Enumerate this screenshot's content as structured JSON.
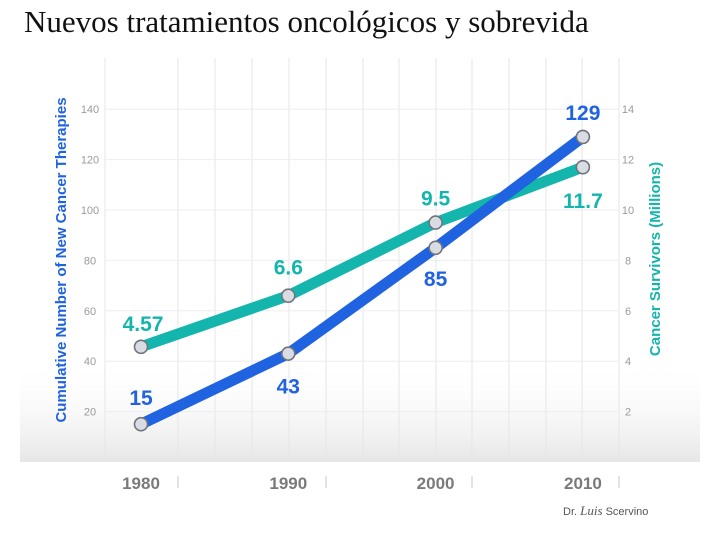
{
  "slide": {
    "title": "Nuevos tratamientos oncológicos  y sobrevida",
    "credit_prefix": "Dr.",
    "credit_name": "Luis",
    "credit_suffix": "Scervino"
  },
  "colors": {
    "therapies": "#1f63e0",
    "survivors": "#14b5ad",
    "left_axis_label": "#1f63e0",
    "right_axis_label": "#14b5ad"
  },
  "chart_data": {
    "type": "line",
    "title": "",
    "xlabel": "",
    "ylabel": "Cumulative Number of New Cancer Therapies",
    "y2label": "Cancer Survivors (Millions)",
    "x": [
      1980,
      1990,
      2000,
      2010
    ],
    "x_tick_labels": [
      "1980",
      "1990",
      "2000",
      "2010"
    ],
    "ylim": [
      0,
      160
    ],
    "y_ticks": [
      20,
      40,
      60,
      80,
      100,
      120,
      140
    ],
    "y2lim": [
      0,
      16
    ],
    "y2_ticks": [
      2,
      4,
      6,
      8,
      10,
      12,
      14
    ],
    "series": [
      {
        "name": "Cumulative Number of New Cancer Therapies",
        "axis": "left",
        "values": [
          15,
          43,
          85,
          129
        ],
        "labels": [
          "15",
          "43",
          "85",
          "129"
        ]
      },
      {
        "name": "Cancer Survivors (Millions)",
        "axis": "right",
        "values": [
          4.57,
          6.6,
          9.5,
          11.7
        ],
        "labels": [
          "4.57",
          "6.6",
          "9.5",
          "11.7"
        ]
      }
    ]
  }
}
